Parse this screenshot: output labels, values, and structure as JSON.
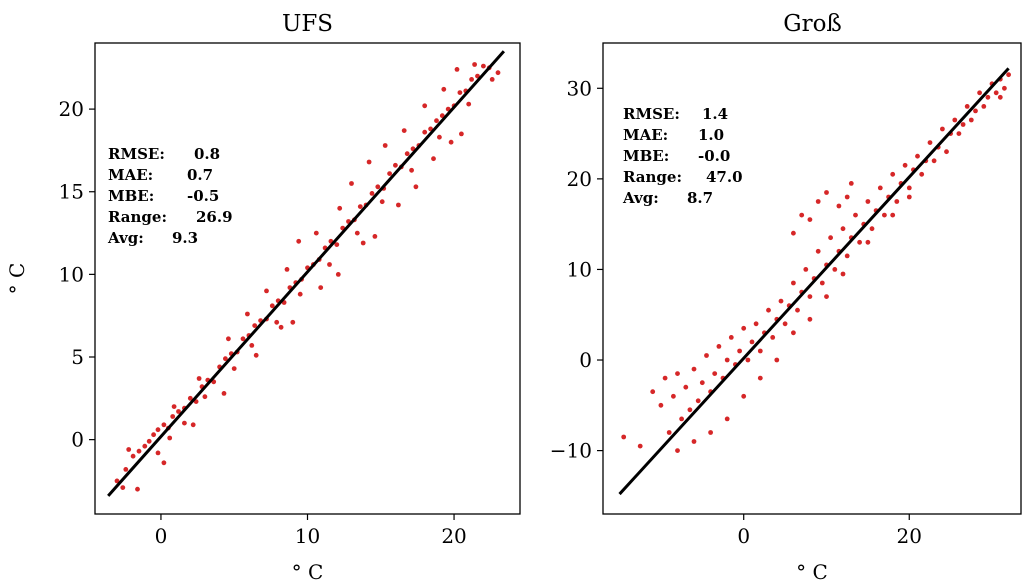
{
  "chart_data": [
    {
      "type": "scatter",
      "title": "UFS",
      "xlabel": "° C",
      "ylabel": "° C",
      "xlim": [
        -4.5,
        24.5
      ],
      "ylim": [
        -4.5,
        24
      ],
      "xticks": [
        0,
        10,
        20
      ],
      "yticks": [
        0,
        5,
        10,
        15,
        20
      ],
      "xtick_labels": [
        "0",
        "10",
        "20"
      ],
      "ytick_labels": [
        "0",
        "5",
        "10",
        "15",
        "20"
      ],
      "stats": {
        "rmse_label": "RMSE:",
        "rmse_value": "0.8",
        "mae_label": "MAE:",
        "mae_value": "0.7",
        "mbe_label": "MBE:",
        "mbe_value": "-0.5",
        "range_label": "Range:",
        "range_value": "26.9",
        "avg_label": "Avg:",
        "avg_value": "9.3"
      },
      "stats_placement": "upper-left",
      "reference_line": {
        "x": [
          -3.6,
          23.4
        ],
        "y": [
          -3.4,
          23.5
        ],
        "color": "#000000"
      },
      "series": [
        {
          "color": "#d62728",
          "points": [
            [
              -3.0,
              -2.5
            ],
            [
              -2.4,
              -1.8
            ],
            [
              -1.9,
              -1.0
            ],
            [
              -1.5,
              -0.7
            ],
            [
              -1.1,
              -0.4
            ],
            [
              -0.8,
              -0.1
            ],
            [
              -0.5,
              0.3
            ],
            [
              -0.2,
              0.6
            ],
            [
              0.2,
              0.9
            ],
            [
              0.5,
              0.7
            ],
            [
              0.8,
              1.4
            ],
            [
              1.2,
              1.7
            ],
            [
              1.6,
              1.9
            ],
            [
              2.0,
              2.5
            ],
            [
              2.4,
              2.3
            ],
            [
              2.8,
              3.2
            ],
            [
              3.2,
              3.6
            ],
            [
              3.6,
              3.5
            ],
            [
              4.0,
              4.4
            ],
            [
              4.4,
              4.9
            ],
            [
              4.8,
              5.2
            ],
            [
              5.2,
              5.3
            ],
            [
              5.6,
              6.1
            ],
            [
              6.0,
              6.3
            ],
            [
              6.4,
              6.9
            ],
            [
              6.8,
              7.2
            ],
            [
              7.2,
              7.3
            ],
            [
              7.6,
              8.1
            ],
            [
              8.0,
              8.4
            ],
            [
              8.4,
              8.3
            ],
            [
              8.8,
              9.2
            ],
            [
              9.2,
              9.5
            ],
            [
              9.6,
              9.7
            ],
            [
              10.0,
              10.4
            ],
            [
              10.4,
              10.6
            ],
            [
              10.8,
              10.9
            ],
            [
              11.2,
              11.6
            ],
            [
              11.6,
              12.0
            ],
            [
              12.0,
              11.8
            ],
            [
              12.4,
              12.8
            ],
            [
              12.8,
              13.2
            ],
            [
              13.2,
              13.3
            ],
            [
              13.6,
              14.1
            ],
            [
              14.0,
              14.2
            ],
            [
              14.4,
              14.9
            ],
            [
              14.8,
              15.3
            ],
            [
              15.2,
              15.2
            ],
            [
              15.6,
              16.1
            ],
            [
              16.0,
              16.6
            ],
            [
              16.4,
              16.5
            ],
            [
              16.8,
              17.3
            ],
            [
              17.2,
              17.6
            ],
            [
              17.6,
              17.8
            ],
            [
              18.0,
              18.6
            ],
            [
              18.4,
              18.8
            ],
            [
              18.8,
              19.3
            ],
            [
              19.2,
              19.6
            ],
            [
              19.6,
              20.0
            ],
            [
              20.0,
              20.2
            ],
            [
              20.4,
              21.0
            ],
            [
              20.8,
              21.1
            ],
            [
              21.2,
              21.8
            ],
            [
              21.6,
              22.0
            ],
            [
              22.0,
              22.6
            ],
            [
              22.4,
              22.5
            ],
            [
              23.0,
              22.2
            ],
            [
              -2.6,
              -2.9
            ],
            [
              -0.2,
              -0.8
            ],
            [
              0.6,
              0.1
            ],
            [
              1.6,
              1.0
            ],
            [
              3.0,
              2.6
            ],
            [
              5.0,
              4.3
            ],
            [
              6.2,
              5.7
            ],
            [
              7.9,
              7.1
            ],
            [
              9.5,
              8.8
            ],
            [
              11.5,
              10.6
            ],
            [
              13.4,
              12.5
            ],
            [
              15.1,
              14.4
            ],
            [
              17.1,
              16.3
            ],
            [
              19.0,
              18.3
            ],
            [
              21.0,
              20.3
            ],
            [
              22.6,
              21.8
            ],
            [
              -2.2,
              -0.6
            ],
            [
              0.9,
              2.0
            ],
            [
              2.6,
              3.7
            ],
            [
              4.6,
              6.1
            ],
            [
              5.9,
              7.6
            ],
            [
              7.2,
              9.0
            ],
            [
              8.6,
              10.3
            ],
            [
              9.4,
              12.0
            ],
            [
              10.6,
              12.5
            ],
            [
              12.2,
              14.0
            ],
            [
              13.0,
              15.5
            ],
            [
              14.2,
              16.8
            ],
            [
              15.3,
              17.8
            ],
            [
              16.6,
              18.7
            ],
            [
              18.0,
              20.2
            ],
            [
              19.3,
              21.2
            ],
            [
              20.2,
              22.4
            ],
            [
              21.4,
              22.7
            ],
            [
              9.0,
              7.1
            ],
            [
              12.1,
              10.0
            ],
            [
              14.6,
              12.3
            ],
            [
              16.2,
              14.2
            ],
            [
              18.6,
              17.0
            ],
            [
              20.5,
              18.5
            ],
            [
              -1.6,
              -3.0
            ],
            [
              0.2,
              -1.4
            ],
            [
              2.2,
              0.9
            ],
            [
              4.3,
              2.8
            ],
            [
              6.5,
              5.1
            ],
            [
              8.2,
              6.8
            ],
            [
              10.9,
              9.2
            ],
            [
              13.8,
              11.9
            ],
            [
              17.4,
              15.3
            ],
            [
              19.8,
              18.0
            ]
          ]
        }
      ]
    },
    {
      "type": "scatter",
      "title": "Groß",
      "xlabel": "° C",
      "ylabel": "",
      "xlim": [
        -17,
        33.5
      ],
      "ylim": [
        -17,
        35
      ],
      "xticks": [
        0,
        20
      ],
      "yticks": [
        -10,
        0,
        10,
        20,
        30
      ],
      "xtick_labels": [
        "0",
        "20"
      ],
      "ytick_labels": [
        "−10",
        "0",
        "10",
        "20",
        "30"
      ],
      "stats": {
        "rmse_label": "RMSE:",
        "rmse_value": "1.4",
        "mae_label": "MAE:",
        "mae_value": "1.0",
        "mbe_label": "MBE:",
        "mbe_value": "-0.0",
        "range_label": "Range:",
        "range_value": "47.0",
        "avg_label": "Avg:",
        "avg_value": "8.7"
      },
      "stats_placement": "upper-left",
      "reference_line": {
        "x": [
          -15.0,
          32.0
        ],
        "y": [
          -14.8,
          32.2
        ],
        "color": "#000000"
      },
      "series": [
        {
          "color": "#d62728",
          "points": [
            [
              -14.5,
              -8.5
            ],
            [
              -12.5,
              -9.5
            ],
            [
              -11.0,
              -3.5
            ],
            [
              -10.0,
              -5.0
            ],
            [
              -9.5,
              -2.0
            ],
            [
              -9.0,
              -8.0
            ],
            [
              -8.5,
              -4.0
            ],
            [
              -8.0,
              -1.5
            ],
            [
              -7.5,
              -6.5
            ],
            [
              -7.0,
              -3.0
            ],
            [
              -6.5,
              -5.5
            ],
            [
              -6.0,
              -1.0
            ],
            [
              -5.5,
              -4.5
            ],
            [
              -5.0,
              -2.5
            ],
            [
              -4.5,
              0.5
            ],
            [
              -4.0,
              -3.5
            ],
            [
              -3.5,
              -1.5
            ],
            [
              -3.0,
              1.5
            ],
            [
              -2.5,
              -2.0
            ],
            [
              -2.0,
              0.0
            ],
            [
              -1.5,
              2.5
            ],
            [
              -1.0,
              -0.5
            ],
            [
              -0.5,
              1.0
            ],
            [
              0.0,
              3.5
            ],
            [
              0.5,
              0.0
            ],
            [
              1.0,
              2.0
            ],
            [
              1.5,
              4.0
            ],
            [
              2.0,
              1.0
            ],
            [
              2.5,
              3.0
            ],
            [
              3.0,
              5.5
            ],
            [
              3.5,
              2.5
            ],
            [
              4.0,
              4.5
            ],
            [
              4.5,
              6.5
            ],
            [
              5.0,
              4.0
            ],
            [
              5.5,
              6.0
            ],
            [
              6.0,
              8.5
            ],
            [
              6.5,
              5.5
            ],
            [
              7.0,
              7.5
            ],
            [
              7.5,
              10.0
            ],
            [
              8.0,
              7.0
            ],
            [
              8.5,
              9.0
            ],
            [
              9.0,
              12.0
            ],
            [
              9.5,
              8.5
            ],
            [
              10.0,
              10.5
            ],
            [
              10.5,
              13.5
            ],
            [
              11.0,
              10.0
            ],
            [
              11.5,
              12.0
            ],
            [
              12.0,
              14.5
            ],
            [
              12.5,
              11.5
            ],
            [
              13.0,
              13.5
            ],
            [
              13.5,
              16.0
            ],
            [
              14.0,
              13.0
            ],
            [
              14.5,
              15.0
            ],
            [
              15.0,
              17.5
            ],
            [
              15.5,
              14.5
            ],
            [
              16.0,
              16.5
            ],
            [
              16.5,
              19.0
            ],
            [
              17.0,
              16.0
            ],
            [
              17.5,
              18.0
            ],
            [
              18.0,
              20.5
            ],
            [
              18.5,
              17.5
            ],
            [
              19.0,
              19.5
            ],
            [
              19.5,
              21.5
            ],
            [
              20.0,
              19.0
            ],
            [
              20.5,
              21.0
            ],
            [
              21.0,
              22.5
            ],
            [
              21.5,
              20.5
            ],
            [
              22.0,
              22.0
            ],
            [
              22.5,
              24.0
            ],
            [
              23.0,
              22.0
            ],
            [
              23.5,
              23.5
            ],
            [
              24.0,
              25.5
            ],
            [
              24.5,
              23.0
            ],
            [
              25.0,
              25.0
            ],
            [
              25.5,
              26.5
            ],
            [
              26.0,
              25.0
            ],
            [
              26.5,
              26.0
            ],
            [
              27.0,
              28.0
            ],
            [
              27.5,
              26.5
            ],
            [
              28.0,
              27.5
            ],
            [
              28.5,
              29.5
            ],
            [
              29.0,
              28.0
            ],
            [
              29.5,
              29.0
            ],
            [
              30.0,
              30.5
            ],
            [
              30.5,
              29.5
            ],
            [
              31.0,
              31.0
            ],
            [
              31.5,
              30.0
            ],
            [
              32.0,
              31.5
            ],
            [
              31.0,
              29.0
            ],
            [
              9.0,
              17.5
            ],
            [
              10.0,
              18.5
            ],
            [
              11.5,
              17.0
            ],
            [
              8.0,
              15.5
            ],
            [
              13.0,
              19.5
            ],
            [
              12.5,
              18.0
            ],
            [
              6.0,
              14.0
            ],
            [
              7.0,
              16.0
            ],
            [
              2.0,
              -2.0
            ],
            [
              4.0,
              0.0
            ],
            [
              6.0,
              3.0
            ],
            [
              8.0,
              4.5
            ],
            [
              10.0,
              7.0
            ],
            [
              12.0,
              9.5
            ],
            [
              15.0,
              13.0
            ],
            [
              18.0,
              16.0
            ],
            [
              20.0,
              18.0
            ],
            [
              -2.0,
              -6.5
            ],
            [
              -4.0,
              -8.0
            ],
            [
              0.0,
              -4.0
            ],
            [
              -6.0,
              -9.0
            ],
            [
              -8.0,
              -10.0
            ]
          ]
        }
      ]
    }
  ]
}
